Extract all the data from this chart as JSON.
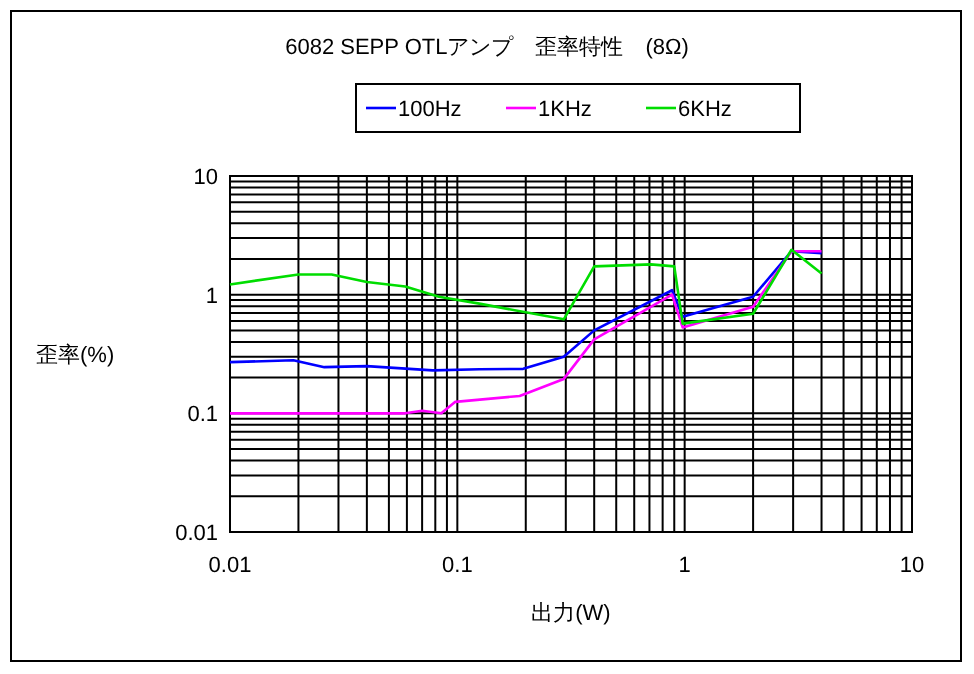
{
  "chart_data": {
    "type": "line",
    "title": "6082 SEPP OTLアンプ　歪率特性　(8Ω)",
    "xlabel": "出力(W)",
    "ylabel": "歪率(%)",
    "log": "xy",
    "grid": true,
    "legend": "top",
    "line_style": "solid",
    "xlim": [
      0.01,
      10
    ],
    "xticks": [
      0.01,
      0.1,
      1,
      10
    ],
    "ylim": [
      0.01,
      10
    ],
    "yticks": [
      0.01,
      0.1,
      1,
      10
    ],
    "series": [
      {
        "name": "100Hz",
        "color": "#0000ff",
        "x": [
          0.01,
          0.019,
          0.026,
          0.04,
          0.078,
          0.125,
          0.195,
          0.294,
          0.4,
          0.88,
          0.98,
          2.0,
          2.95,
          4.0
        ],
        "values": [
          0.27,
          0.28,
          0.245,
          0.25,
          0.23,
          0.235,
          0.237,
          0.3,
          0.5,
          1.09,
          0.65,
          0.96,
          2.32,
          2.24
        ]
      },
      {
        "name": "1KHz",
        "color": "#ff00ff",
        "x": [
          0.01,
          0.059,
          0.07,
          0.085,
          0.098,
          0.188,
          0.294,
          0.4,
          0.88,
          0.98,
          2.0,
          2.95,
          4.0
        ],
        "values": [
          0.1,
          0.1,
          0.105,
          0.1,
          0.125,
          0.14,
          0.195,
          0.42,
          1.0,
          0.53,
          0.79,
          2.32,
          2.32
        ]
      },
      {
        "name": "6KHz",
        "color": "#00dd00",
        "x": [
          0.01,
          0.02,
          0.028,
          0.04,
          0.059,
          0.083,
          0.125,
          0.294,
          0.4,
          0.71,
          0.9,
          0.98,
          2.0,
          2.95,
          4.0
        ],
        "values": [
          1.22,
          1.48,
          1.48,
          1.28,
          1.17,
          0.96,
          0.84,
          0.62,
          1.73,
          1.8,
          1.73,
          0.57,
          0.69,
          2.39,
          1.51
        ]
      }
    ]
  }
}
